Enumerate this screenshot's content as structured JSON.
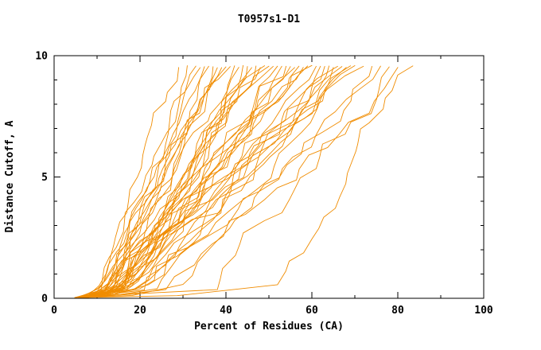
{
  "chart_data": {
    "type": "line",
    "title": "T0957s1-D1",
    "xlabel": "Percent of Residues (CA)",
    "ylabel": "Distance Cutoff, A",
    "xlim": [
      0,
      100
    ],
    "ylim": [
      0,
      10
    ],
    "x_major_ticks": [
      0,
      20,
      40,
      60,
      80,
      100
    ],
    "x_minor_step": 10,
    "y_major_ticks": [
      0,
      5,
      10
    ],
    "y_minor_step": 1,
    "grid": false,
    "legend": "none",
    "line_color": "#f08c00",
    "axis_color": "#000000",
    "curve_top_y": 9.55,
    "seed": 7,
    "series_note": "Each curve: percent of CA residues (x) under distance cutoff (y). s = x at y=0, b = x at low shoulder, e = x at curve top (~9.6 A).",
    "series": [
      {
        "s": 5.0,
        "b": 10.0,
        "e": 29.0
      },
      {
        "s": 5.5,
        "b": 11.0,
        "e": 31.0
      },
      {
        "s": 6.0,
        "b": 12.0,
        "e": 33.0
      },
      {
        "s": 6.5,
        "b": 11.5,
        "e": 34.0
      },
      {
        "s": 5.2,
        "b": 10.5,
        "e": 35.0
      },
      {
        "s": 7.0,
        "b": 13.0,
        "e": 36.0
      },
      {
        "s": 5.8,
        "b": 12.5,
        "e": 37.0
      },
      {
        "s": 6.2,
        "b": 14.0,
        "e": 38.0
      },
      {
        "s": 4.8,
        "b": 10.0,
        "e": 39.0
      },
      {
        "s": 6.8,
        "b": 13.5,
        "e": 40.0
      },
      {
        "s": 5.4,
        "b": 11.0,
        "e": 41.0
      },
      {
        "s": 7.2,
        "b": 15.0,
        "e": 42.0
      },
      {
        "s": 5.0,
        "b": 12.0,
        "e": 43.0
      },
      {
        "s": 6.4,
        "b": 16.0,
        "e": 44.0
      },
      {
        "s": 5.6,
        "b": 13.0,
        "e": 45.0
      },
      {
        "s": 7.5,
        "b": 14.5,
        "e": 46.0
      },
      {
        "s": 6.0,
        "b": 12.8,
        "e": 47.0
      },
      {
        "s": 5.2,
        "b": 15.5,
        "e": 48.0
      },
      {
        "s": 6.6,
        "b": 13.2,
        "e": 49.0
      },
      {
        "s": 7.8,
        "b": 16.5,
        "e": 50.0
      },
      {
        "s": 5.9,
        "b": 14.2,
        "e": 51.0
      },
      {
        "s": 6.3,
        "b": 12.2,
        "e": 52.0
      },
      {
        "s": 5.1,
        "b": 17.0,
        "e": 53.0
      },
      {
        "s": 6.9,
        "b": 14.8,
        "e": 54.0
      },
      {
        "s": 5.5,
        "b": 13.6,
        "e": 55.0
      },
      {
        "s": 7.1,
        "b": 18.0,
        "e": 56.0
      },
      {
        "s": 6.1,
        "b": 15.2,
        "e": 57.0
      },
      {
        "s": 5.3,
        "b": 12.6,
        "e": 58.0
      },
      {
        "s": 6.7,
        "b": 16.8,
        "e": 59.0
      },
      {
        "s": 7.4,
        "b": 14.4,
        "e": 60.0
      },
      {
        "s": 5.7,
        "b": 19.0,
        "e": 61.0
      },
      {
        "s": 6.2,
        "b": 15.8,
        "e": 62.0
      },
      {
        "s": 5.0,
        "b": 13.4,
        "e": 63.0
      },
      {
        "s": 6.8,
        "b": 20.0,
        "e": 64.0
      },
      {
        "s": 7.6,
        "b": 16.2,
        "e": 65.0
      },
      {
        "s": 5.4,
        "b": 14.6,
        "e": 66.0
      },
      {
        "s": 6.0,
        "b": 22.0,
        "e": 67.0
      },
      {
        "s": 5.8,
        "b": 17.4,
        "e": 68.0
      },
      {
        "s": 6.5,
        "b": 15.4,
        "e": 69.0
      },
      {
        "s": 7.0,
        "b": 24.0,
        "e": 70.0
      },
      {
        "s": 5.2,
        "b": 18.6,
        "e": 72.0
      },
      {
        "s": 6.4,
        "b": 30.0,
        "e": 74.0
      },
      {
        "s": 5.6,
        "b": 21.0,
        "e": 76.0
      },
      {
        "s": 6.1,
        "b": 38.0,
        "e": 78.0
      },
      {
        "s": 6.9,
        "b": 26.0,
        "e": 80.0
      },
      {
        "s": 5.3,
        "b": 52.0,
        "e": 83.5
      }
    ]
  }
}
